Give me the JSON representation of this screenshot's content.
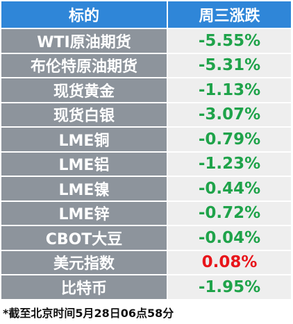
{
  "table": {
    "header": [
      "标的",
      "周三涨跌"
    ],
    "rows": [
      {
        "name": "WTI原油期货",
        "change": "-5.55%",
        "color": "#1fa34a"
      },
      {
        "name": "布伦特原油期货",
        "change": "-5.31%",
        "color": "#1fa34a"
      },
      {
        "name": "现货黄金",
        "change": "-1.13%",
        "color": "#1fa34a"
      },
      {
        "name": "现货白银",
        "change": "-3.07%",
        "color": "#1fa34a"
      },
      {
        "name": "LME铜",
        "change": "-0.79%",
        "color": "#1fa34a"
      },
      {
        "name": "LME铝",
        "change": "-1.23%",
        "color": "#1fa34a"
      },
      {
        "name": "LME镍",
        "change": "-0.44%",
        "color": "#1fa34a"
      },
      {
        "name": "LME锌",
        "change": "-0.72%",
        "color": "#1fa34a"
      },
      {
        "name": "CBOT大豆",
        "change": "-0.04%",
        "color": "#1fa34a"
      },
      {
        "name": "美元指数",
        "change": "0.08%",
        "color": "#e8151b"
      },
      {
        "name": "比特币",
        "change": "-1.95%",
        "color": "#1fa34a"
      }
    ]
  },
  "footnote": "*截至北京时间5月28日06点58分"
}
